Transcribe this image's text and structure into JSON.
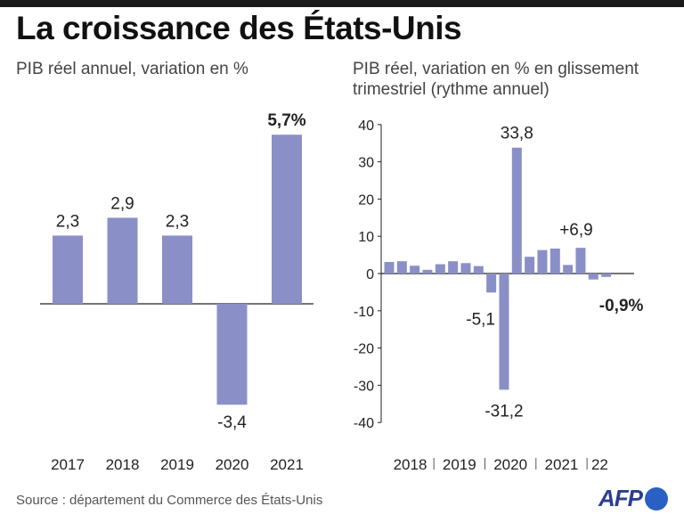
{
  "title": "La croissance des États-Unis",
  "source": "Source : département du Commerce des États-Unis",
  "logo_text": "AFP",
  "colors": {
    "bar": "#8b8fc7",
    "axis": "#222222",
    "grid": "#cccccc",
    "text": "#222222",
    "brand": "#2a5fc4"
  },
  "chart_data": [
    {
      "type": "bar",
      "title": "PIB réel annuel, variation en %",
      "categories": [
        "2017",
        "2018",
        "2019",
        "2020",
        "2021"
      ],
      "values": [
        2.3,
        2.9,
        2.3,
        -3.4,
        5.7
      ],
      "data_labels": [
        "2,3",
        "2,9",
        "2,3",
        "-3,4",
        "5,7%"
      ],
      "highlight_label_index": 4,
      "ylim": [
        -4,
        6
      ],
      "grid": false,
      "yaxis_visible": false
    },
    {
      "type": "bar",
      "title": "PIB réel, variation en % en glissement trimestriel (rythme annuel)",
      "year_labels": [
        "2018",
        "2019",
        "2020",
        "2021",
        "22"
      ],
      "year_quarter_counts": [
        4,
        4,
        4,
        4,
        2
      ],
      "values": [
        3.1,
        3.3,
        2.1,
        1.0,
        2.5,
        3.3,
        2.8,
        2.0,
        -5.1,
        -31.2,
        33.8,
        4.5,
        6.3,
        6.7,
        2.3,
        6.9,
        -1.6,
        -0.9
      ],
      "data_labels": [
        {
          "index": 8,
          "text": "-5,1"
        },
        {
          "index": 9,
          "text": "-31,2"
        },
        {
          "index": 10,
          "text": "33,8"
        },
        {
          "index": 15,
          "text": "+6,9"
        },
        {
          "index": 17,
          "text": "-0,9%",
          "bold": true
        }
      ],
      "yticks": [
        40,
        30,
        20,
        10,
        0,
        -10,
        -20,
        -30,
        -40
      ],
      "ytick_labels": [
        "40",
        "30",
        "20",
        "10",
        "0",
        "-10",
        "-20",
        "-30",
        "-40"
      ],
      "ylim": [
        -40,
        40
      ],
      "grid": false,
      "yaxis_visible": true
    }
  ]
}
